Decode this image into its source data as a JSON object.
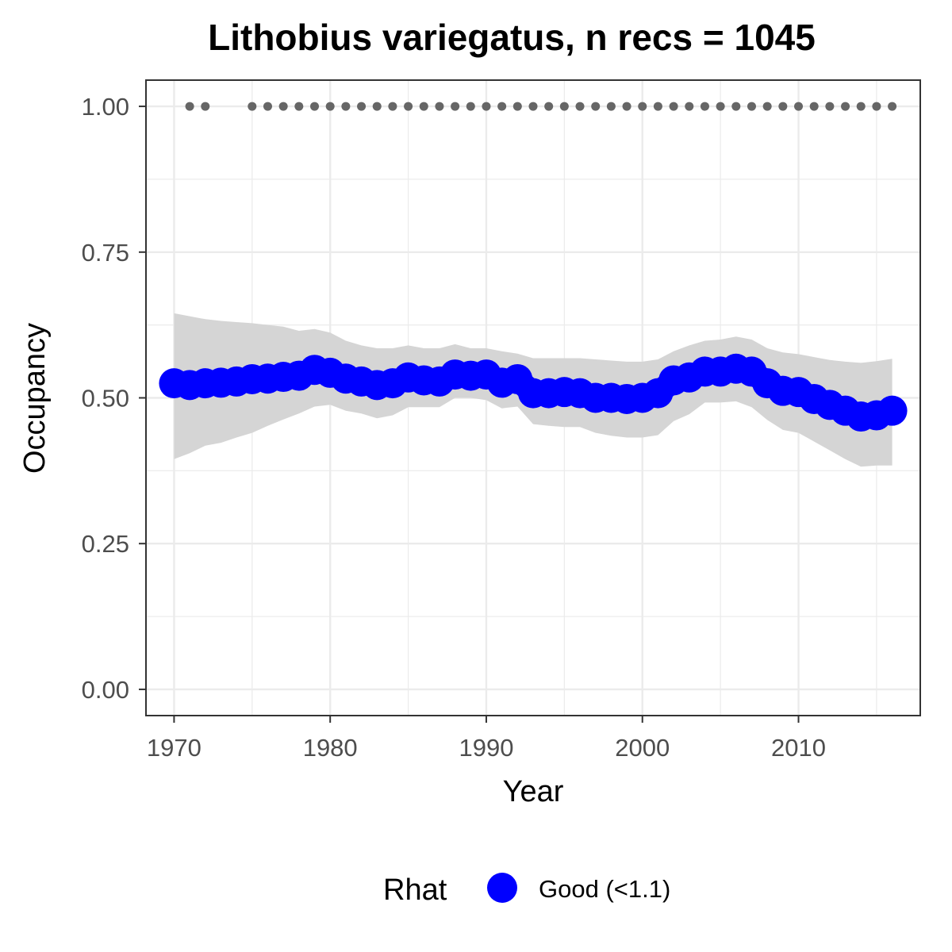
{
  "chart_data": {
    "type": "line",
    "title": "Lithobius variegatus, n recs = 1045",
    "xlabel": "Year",
    "ylabel": "Occupancy",
    "xlim": [
      1968.2,
      2017.8
    ],
    "ylim": [
      -0.045,
      1.045
    ],
    "x_ticks": [
      1970,
      1980,
      1990,
      2000,
      2010
    ],
    "x_tick_labels": [
      "1970",
      "1980",
      "1990",
      "2000",
      "2010"
    ],
    "y_ticks": [
      0,
      0.25,
      0.5,
      0.75,
      1.0
    ],
    "y_tick_labels": [
      "0.00",
      "0.25",
      "0.50",
      "0.75",
      "1.00"
    ],
    "grid": true,
    "legend": {
      "title": "Rhat",
      "position": "bottom",
      "entries": [
        {
          "label": "Good (<1.1)",
          "color": "#0000ff"
        }
      ]
    },
    "colors": {
      "series": "#0000ff",
      "ribbon": "#d5d5d5",
      "record_years": "#666666",
      "grid": "#ebebeb",
      "panel_border": "#333333"
    },
    "series": [
      {
        "name": "Good (<1.1)",
        "x": [
          1970,
          1971,
          1972,
          1973,
          1974,
          1975,
          1976,
          1977,
          1978,
          1979,
          1980,
          1981,
          1982,
          1983,
          1984,
          1985,
          1986,
          1987,
          1988,
          1989,
          1990,
          1991,
          1992,
          1993,
          1994,
          1995,
          1996,
          1997,
          1998,
          1999,
          2000,
          2001,
          2002,
          2003,
          2004,
          2005,
          2006,
          2007,
          2008,
          2009,
          2010,
          2011,
          2012,
          2013,
          2014,
          2015,
          2016
        ],
        "y": [
          0.525,
          0.522,
          0.525,
          0.526,
          0.528,
          0.532,
          0.533,
          0.536,
          0.538,
          0.548,
          0.543,
          0.533,
          0.528,
          0.522,
          0.525,
          0.535,
          0.53,
          0.528,
          0.54,
          0.538,
          0.54,
          0.526,
          0.532,
          0.508,
          0.508,
          0.51,
          0.508,
          0.5,
          0.5,
          0.498,
          0.5,
          0.508,
          0.53,
          0.535,
          0.545,
          0.545,
          0.55,
          0.545,
          0.525,
          0.512,
          0.51,
          0.498,
          0.488,
          0.478,
          0.468,
          0.47,
          0.478
        ],
        "lower": [
          0.395,
          0.405,
          0.418,
          0.423,
          0.432,
          0.44,
          0.452,
          0.463,
          0.473,
          0.485,
          0.488,
          0.478,
          0.473,
          0.465,
          0.47,
          0.484,
          0.484,
          0.484,
          0.5,
          0.5,
          0.496,
          0.482,
          0.485,
          0.455,
          0.452,
          0.45,
          0.45,
          0.44,
          0.435,
          0.432,
          0.432,
          0.436,
          0.46,
          0.472,
          0.492,
          0.492,
          0.494,
          0.484,
          0.462,
          0.445,
          0.44,
          0.425,
          0.41,
          0.395,
          0.382,
          0.384,
          0.384
        ],
        "upper": [
          0.645,
          0.64,
          0.635,
          0.632,
          0.63,
          0.628,
          0.625,
          0.622,
          0.615,
          0.618,
          0.612,
          0.598,
          0.59,
          0.585,
          0.585,
          0.59,
          0.585,
          0.585,
          0.592,
          0.585,
          0.585,
          0.58,
          0.576,
          0.568,
          0.568,
          0.568,
          0.568,
          0.566,
          0.564,
          0.562,
          0.562,
          0.566,
          0.58,
          0.59,
          0.598,
          0.6,
          0.605,
          0.6,
          0.585,
          0.578,
          0.575,
          0.57,
          0.565,
          0.562,
          0.56,
          0.563,
          0.567
        ]
      }
    ],
    "record_years": {
      "y": 1.0,
      "x": [
        1971,
        1972,
        1975,
        1976,
        1977,
        1978,
        1979,
        1980,
        1981,
        1982,
        1983,
        1984,
        1985,
        1986,
        1987,
        1988,
        1989,
        1990,
        1991,
        1992,
        1993,
        1994,
        1995,
        1996,
        1997,
        1998,
        1999,
        2000,
        2001,
        2002,
        2003,
        2004,
        2005,
        2006,
        2007,
        2008,
        2009,
        2010,
        2011,
        2012,
        2013,
        2014,
        2015,
        2016
      ]
    }
  }
}
